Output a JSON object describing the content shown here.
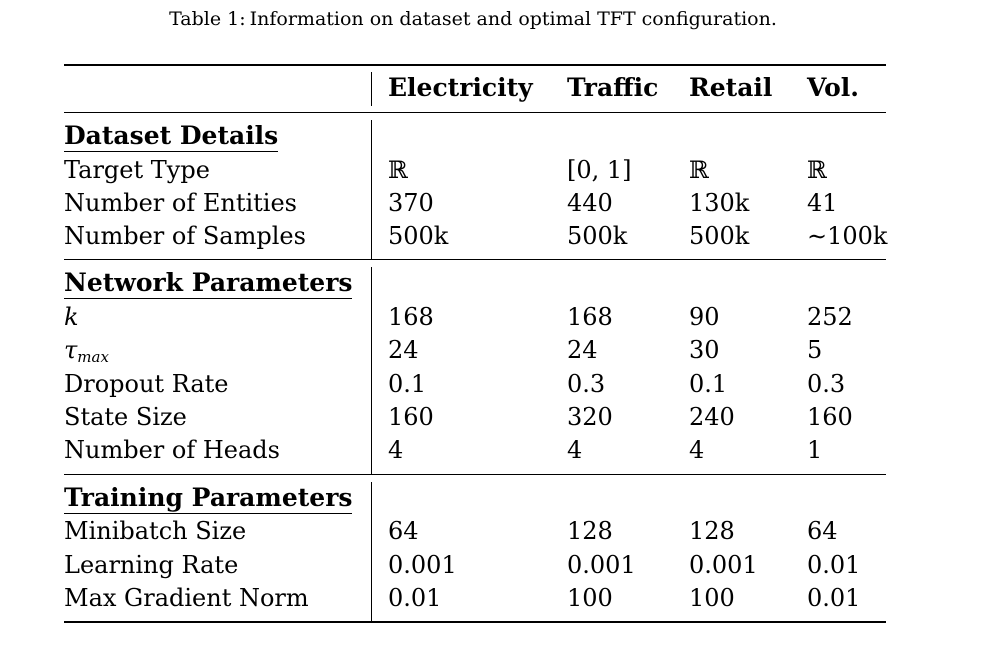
{
  "caption": {
    "label": "Table 1:",
    "text": "Information on dataset and optimal TFT configuration."
  },
  "columns": [
    "Electricity",
    "Traffic",
    "Retail",
    "Vol."
  ],
  "sections": [
    {
      "title": "Dataset Details",
      "rows": [
        {
          "label": "Target Type",
          "values": [
            "ℝ",
            "[0, 1]",
            "ℝ",
            "ℝ"
          ]
        },
        {
          "label": "Number of Entities",
          "values": [
            "370",
            "440",
            "130k",
            "41"
          ]
        },
        {
          "label": "Number of Samples",
          "values": [
            "500k",
            "500k",
            "500k",
            "∼100k"
          ]
        }
      ]
    },
    {
      "title": "Network Parameters",
      "rows": [
        {
          "label": "k",
          "values": [
            "168",
            "168",
            "90",
            "252"
          ]
        },
        {
          "label": "τ",
          "label_sub": "max",
          "values": [
            "24",
            "24",
            "30",
            "5"
          ]
        },
        {
          "label": "Dropout Rate",
          "values": [
            "0.1",
            "0.3",
            "0.1",
            "0.3"
          ]
        },
        {
          "label": "State Size",
          "values": [
            "160",
            "320",
            "240",
            "160"
          ]
        },
        {
          "label": "Number of Heads",
          "values": [
            "4",
            "4",
            "4",
            "1"
          ]
        }
      ]
    },
    {
      "title": "Training Parameters",
      "rows": [
        {
          "label": "Minibatch Size",
          "values": [
            "64",
            "128",
            "128",
            "64"
          ]
        },
        {
          "label": "Learning Rate",
          "values": [
            "0.001",
            "0.001",
            "0.001",
            "0.01"
          ]
        },
        {
          "label": "Max Gradient Norm",
          "values": [
            "0.01",
            "100",
            "100",
            "0.01"
          ]
        }
      ]
    }
  ]
}
